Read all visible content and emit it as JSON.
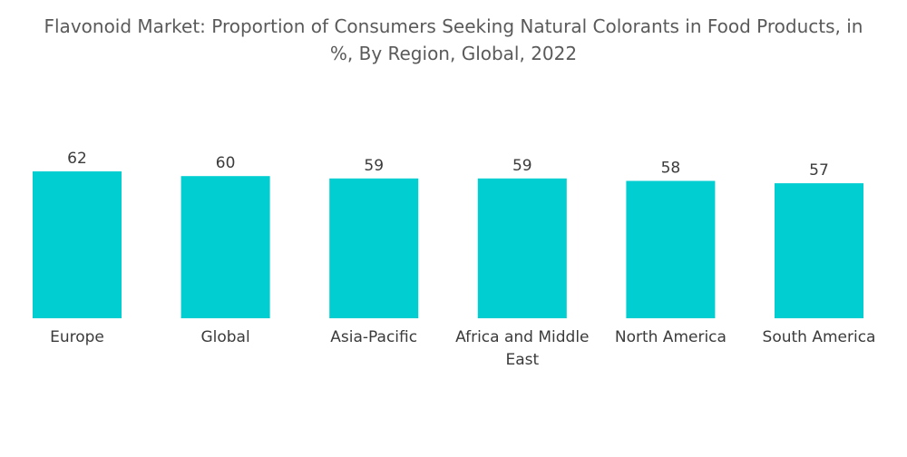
{
  "title": {
    "line1": "Flavonoid Market: Proportion of Consumers Seeking Natural Colorants in Food Products, in",
    "line2": "%, By Region, Global, 2022"
  },
  "chart_data": {
    "type": "bar",
    "categories": [
      "Europe",
      "Global",
      "Asia-Pacific",
      "Africa and Middle East",
      "North America",
      "South America"
    ],
    "category_lines": [
      [
        "Europe"
      ],
      [
        "Global"
      ],
      [
        "Asia-Pacific"
      ],
      [
        "Africa and Middle",
        "East"
      ],
      [
        "North America"
      ],
      [
        "South America"
      ]
    ],
    "values": [
      62,
      60,
      59,
      59,
      58,
      57
    ],
    "ylim": [
      0,
      62
    ],
    "grid": false,
    "legend": "none",
    "bar_color": "#00ced1"
  }
}
